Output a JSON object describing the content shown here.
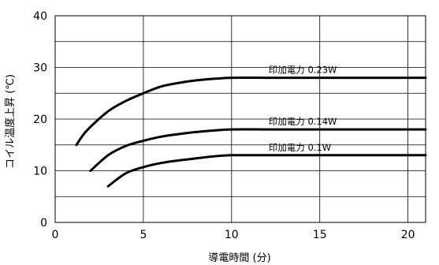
{
  "chart_data": {
    "type": "line",
    "xlabel": "導電時間 (分)",
    "ylabel": "コイル温度上昇 (℃)",
    "xlim": [
      0,
      21
    ],
    "ylim": [
      0,
      40
    ],
    "x_ticks": [
      0,
      5,
      10,
      15,
      20
    ],
    "y_ticks": [
      0,
      10,
      20,
      30,
      40
    ],
    "grid": true,
    "series": [
      {
        "name": "印加電力 0.23W",
        "points": [
          [
            1.2,
            15
          ],
          [
            1.8,
            17.8
          ],
          [
            3,
            21.5
          ],
          [
            4,
            23.5
          ],
          [
            5,
            25
          ],
          [
            6,
            26.3
          ],
          [
            7,
            27
          ],
          [
            8,
            27.5
          ],
          [
            9,
            27.8
          ],
          [
            10,
            28
          ],
          [
            12,
            28
          ],
          [
            15,
            28
          ],
          [
            18,
            28
          ],
          [
            21,
            28
          ]
        ]
      },
      {
        "name": "印加電力 0.14W",
        "points": [
          [
            2,
            10
          ],
          [
            3,
            13
          ],
          [
            4,
            14.8
          ],
          [
            5,
            15.8
          ],
          [
            6,
            16.6
          ],
          [
            7,
            17.1
          ],
          [
            8,
            17.5
          ],
          [
            9,
            17.8
          ],
          [
            10,
            18
          ],
          [
            12,
            18
          ],
          [
            15,
            18
          ],
          [
            18,
            18
          ],
          [
            21,
            18
          ]
        ]
      },
      {
        "name": "印加電力 0.1W",
        "points": [
          [
            3,
            7
          ],
          [
            4,
            9.5
          ],
          [
            5,
            10.7
          ],
          [
            6,
            11.5
          ],
          [
            7,
            12
          ],
          [
            8,
            12.4
          ],
          [
            9,
            12.8
          ],
          [
            10,
            13
          ],
          [
            12,
            13
          ],
          [
            15,
            13
          ],
          [
            18,
            13
          ],
          [
            21,
            13
          ]
        ]
      }
    ]
  }
}
